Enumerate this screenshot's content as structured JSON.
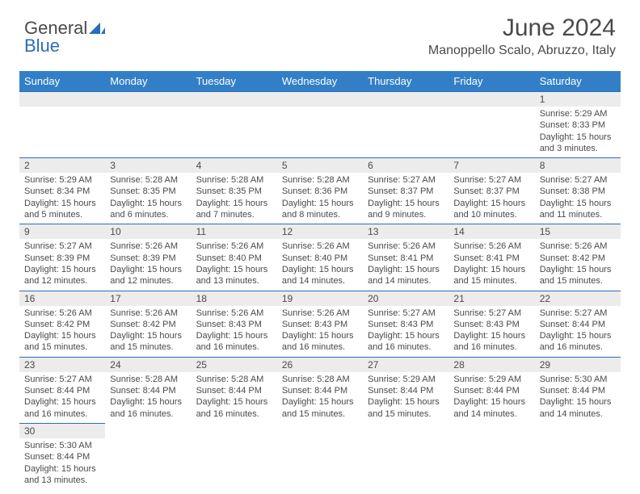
{
  "brand": {
    "part1": "General",
    "part2": "Blue"
  },
  "title": "June 2024",
  "location": "Manoppello Scalo, Abruzzo, Italy",
  "colors": {
    "header_bg": "#337fc7",
    "header_text": "#ffffff",
    "daynum_bg": "#ececec",
    "border": "#2a6db8",
    "body_text": "#4a4a4a",
    "logo_blue": "#2a6db8"
  },
  "day_headers": [
    "Sunday",
    "Monday",
    "Tuesday",
    "Wednesday",
    "Thursday",
    "Friday",
    "Saturday"
  ],
  "weeks": [
    [
      null,
      null,
      null,
      null,
      null,
      null,
      {
        "n": "1",
        "sunrise": "Sunrise: 5:29 AM",
        "sunset": "Sunset: 8:33 PM",
        "daylight": "Daylight: 15 hours and 3 minutes."
      }
    ],
    [
      {
        "n": "2",
        "sunrise": "Sunrise: 5:29 AM",
        "sunset": "Sunset: 8:34 PM",
        "daylight": "Daylight: 15 hours and 5 minutes."
      },
      {
        "n": "3",
        "sunrise": "Sunrise: 5:28 AM",
        "sunset": "Sunset: 8:35 PM",
        "daylight": "Daylight: 15 hours and 6 minutes."
      },
      {
        "n": "4",
        "sunrise": "Sunrise: 5:28 AM",
        "sunset": "Sunset: 8:35 PM",
        "daylight": "Daylight: 15 hours and 7 minutes."
      },
      {
        "n": "5",
        "sunrise": "Sunrise: 5:28 AM",
        "sunset": "Sunset: 8:36 PM",
        "daylight": "Daylight: 15 hours and 8 minutes."
      },
      {
        "n": "6",
        "sunrise": "Sunrise: 5:27 AM",
        "sunset": "Sunset: 8:37 PM",
        "daylight": "Daylight: 15 hours and 9 minutes."
      },
      {
        "n": "7",
        "sunrise": "Sunrise: 5:27 AM",
        "sunset": "Sunset: 8:37 PM",
        "daylight": "Daylight: 15 hours and 10 minutes."
      },
      {
        "n": "8",
        "sunrise": "Sunrise: 5:27 AM",
        "sunset": "Sunset: 8:38 PM",
        "daylight": "Daylight: 15 hours and 11 minutes."
      }
    ],
    [
      {
        "n": "9",
        "sunrise": "Sunrise: 5:27 AM",
        "sunset": "Sunset: 8:39 PM",
        "daylight": "Daylight: 15 hours and 12 minutes."
      },
      {
        "n": "10",
        "sunrise": "Sunrise: 5:26 AM",
        "sunset": "Sunset: 8:39 PM",
        "daylight": "Daylight: 15 hours and 12 minutes."
      },
      {
        "n": "11",
        "sunrise": "Sunrise: 5:26 AM",
        "sunset": "Sunset: 8:40 PM",
        "daylight": "Daylight: 15 hours and 13 minutes."
      },
      {
        "n": "12",
        "sunrise": "Sunrise: 5:26 AM",
        "sunset": "Sunset: 8:40 PM",
        "daylight": "Daylight: 15 hours and 14 minutes."
      },
      {
        "n": "13",
        "sunrise": "Sunrise: 5:26 AM",
        "sunset": "Sunset: 8:41 PM",
        "daylight": "Daylight: 15 hours and 14 minutes."
      },
      {
        "n": "14",
        "sunrise": "Sunrise: 5:26 AM",
        "sunset": "Sunset: 8:41 PM",
        "daylight": "Daylight: 15 hours and 15 minutes."
      },
      {
        "n": "15",
        "sunrise": "Sunrise: 5:26 AM",
        "sunset": "Sunset: 8:42 PM",
        "daylight": "Daylight: 15 hours and 15 minutes."
      }
    ],
    [
      {
        "n": "16",
        "sunrise": "Sunrise: 5:26 AM",
        "sunset": "Sunset: 8:42 PM",
        "daylight": "Daylight: 15 hours and 15 minutes."
      },
      {
        "n": "17",
        "sunrise": "Sunrise: 5:26 AM",
        "sunset": "Sunset: 8:42 PM",
        "daylight": "Daylight: 15 hours and 15 minutes."
      },
      {
        "n": "18",
        "sunrise": "Sunrise: 5:26 AM",
        "sunset": "Sunset: 8:43 PM",
        "daylight": "Daylight: 15 hours and 16 minutes."
      },
      {
        "n": "19",
        "sunrise": "Sunrise: 5:26 AM",
        "sunset": "Sunset: 8:43 PM",
        "daylight": "Daylight: 15 hours and 16 minutes."
      },
      {
        "n": "20",
        "sunrise": "Sunrise: 5:27 AM",
        "sunset": "Sunset: 8:43 PM",
        "daylight": "Daylight: 15 hours and 16 minutes."
      },
      {
        "n": "21",
        "sunrise": "Sunrise: 5:27 AM",
        "sunset": "Sunset: 8:43 PM",
        "daylight": "Daylight: 15 hours and 16 minutes."
      },
      {
        "n": "22",
        "sunrise": "Sunrise: 5:27 AM",
        "sunset": "Sunset: 8:44 PM",
        "daylight": "Daylight: 15 hours and 16 minutes."
      }
    ],
    [
      {
        "n": "23",
        "sunrise": "Sunrise: 5:27 AM",
        "sunset": "Sunset: 8:44 PM",
        "daylight": "Daylight: 15 hours and 16 minutes."
      },
      {
        "n": "24",
        "sunrise": "Sunrise: 5:28 AM",
        "sunset": "Sunset: 8:44 PM",
        "daylight": "Daylight: 15 hours and 16 minutes."
      },
      {
        "n": "25",
        "sunrise": "Sunrise: 5:28 AM",
        "sunset": "Sunset: 8:44 PM",
        "daylight": "Daylight: 15 hours and 16 minutes."
      },
      {
        "n": "26",
        "sunrise": "Sunrise: 5:28 AM",
        "sunset": "Sunset: 8:44 PM",
        "daylight": "Daylight: 15 hours and 15 minutes."
      },
      {
        "n": "27",
        "sunrise": "Sunrise: 5:29 AM",
        "sunset": "Sunset: 8:44 PM",
        "daylight": "Daylight: 15 hours and 15 minutes."
      },
      {
        "n": "28",
        "sunrise": "Sunrise: 5:29 AM",
        "sunset": "Sunset: 8:44 PM",
        "daylight": "Daylight: 15 hours and 14 minutes."
      },
      {
        "n": "29",
        "sunrise": "Sunrise: 5:30 AM",
        "sunset": "Sunset: 8:44 PM",
        "daylight": "Daylight: 15 hours and 14 minutes."
      }
    ],
    [
      {
        "n": "30",
        "sunrise": "Sunrise: 5:30 AM",
        "sunset": "Sunset: 8:44 PM",
        "daylight": "Daylight: 15 hours and 13 minutes."
      },
      null,
      null,
      null,
      null,
      null,
      null
    ]
  ]
}
